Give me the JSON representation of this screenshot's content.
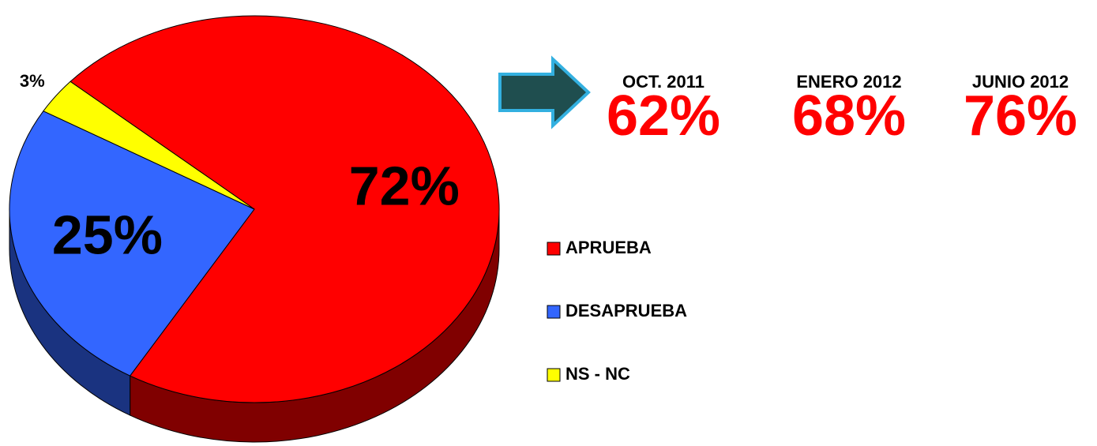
{
  "chart_data": {
    "type": "pie",
    "categories": [
      "APRUEBA",
      "DESAPRUEBA",
      "NS - NC"
    ],
    "values": [
      72,
      25,
      3
    ],
    "value_labels": [
      "72%",
      "25%",
      "3%"
    ],
    "colors": [
      "#ff0000",
      "#3366ff",
      "#ffff00"
    ],
    "legend": "right",
    "history": {
      "categories": [
        "OCT. 2011",
        "ENERO 2012",
        "JUNIO 2012"
      ],
      "values": [
        62,
        68,
        76
      ],
      "value_labels": [
        "62%",
        "68%",
        "76%"
      ],
      "color": "#ff0000"
    }
  }
}
